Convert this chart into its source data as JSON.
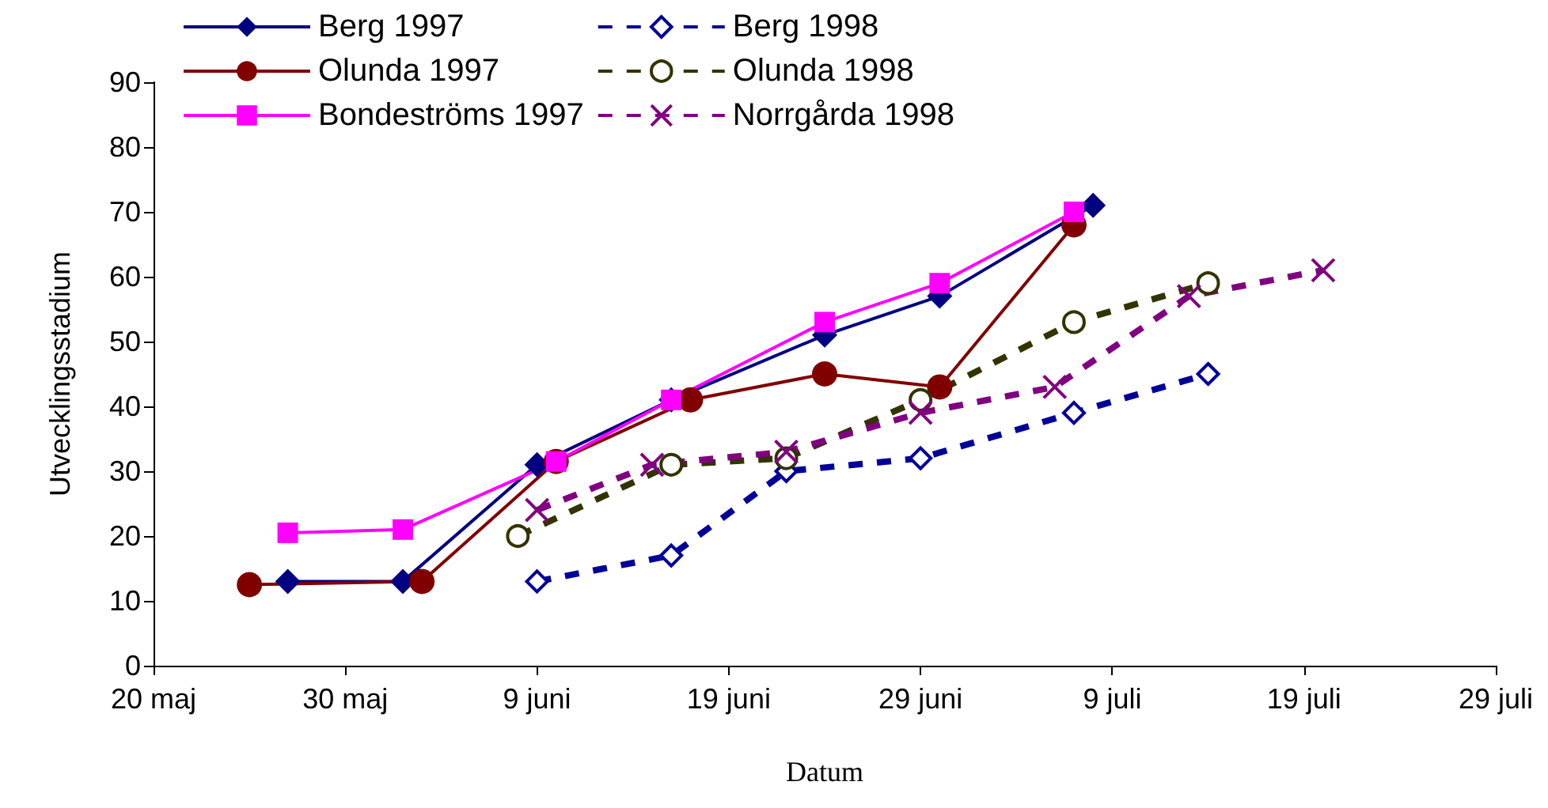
{
  "chart_data": {
    "type": "line",
    "xlabel": "Datum",
    "ylabel": "Utvecklingsstadium",
    "xlim": [
      "--05-20",
      "--07-29"
    ],
    "xticks": [
      {
        "value": "--05-20",
        "label": "20 maj"
      },
      {
        "value": "--05-30",
        "label": "30 maj"
      },
      {
        "value": "--06-09",
        "label": "9 juni"
      },
      {
        "value": "--06-19",
        "label": "19 juni"
      },
      {
        "value": "--06-29",
        "label": "29 juni"
      },
      {
        "value": "--07-09",
        "label": "9 juli"
      },
      {
        "value": "--07-19",
        "label": "19 juli"
      },
      {
        "value": "--07-29",
        "label": "29 juli"
      }
    ],
    "ylim": [
      0,
      90
    ],
    "yticks": [
      0,
      10,
      20,
      30,
      40,
      50,
      60,
      70,
      80,
      90
    ],
    "grid": false,
    "legend": "top",
    "series": [
      {
        "name": "Berg 1997",
        "color": "#000080",
        "marker": "diamond",
        "line_style": "solid",
        "x": [
          "--05-27",
          "--06-02",
          "--06-09",
          "--06-16",
          "--06-24",
          "--06-30",
          "--07-08"
        ],
        "values": [
          13,
          13,
          31,
          41,
          51,
          57,
          71
        ]
      },
      {
        "name": "Olunda 1997",
        "color": "#800000",
        "marker": "circle",
        "line_style": "solid",
        "x": [
          "--05-25",
          "--06-03",
          "--06-10",
          "--06-17",
          "--06-24",
          "--06-30",
          "--07-07"
        ],
        "values": [
          12.5,
          13,
          31.5,
          41,
          45,
          43,
          68
        ]
      },
      {
        "name": "Bondeströms 1997",
        "color": "#ff00ff",
        "marker": "square",
        "line_style": "solid",
        "x": [
          "--05-27",
          "--06-02",
          "--06-10",
          "--06-16",
          "--06-24",
          "--06-30",
          "--07-07"
        ],
        "values": [
          20.5,
          21,
          31.5,
          41,
          53,
          59,
          70
        ]
      },
      {
        "name": "Berg 1998",
        "color": "#000099",
        "marker": "diamond",
        "line_style": "dashed",
        "x": [
          "--06-09",
          "--06-16",
          "--06-22",
          "--06-29",
          "--07-07",
          "--07-14"
        ],
        "values": [
          13,
          17,
          30,
          32,
          39,
          45
        ]
      },
      {
        "name": "Olunda 1998",
        "color": "#333300",
        "marker": "circle",
        "line_style": "dashed",
        "x": [
          "--06-08",
          "--06-16",
          "--06-22",
          "--06-29",
          "--07-07",
          "--07-14"
        ],
        "values": [
          20,
          31,
          32,
          41,
          53,
          59
        ]
      },
      {
        "name": "Norrgårda 1998",
        "color": "#800080",
        "marker": "cross",
        "line_style": "dashed",
        "x": [
          "--06-09",
          "--06-15",
          "--06-22",
          "--06-29",
          "--07-06",
          "--07-13",
          "--07-20"
        ],
        "values": [
          24,
          31,
          33,
          39,
          43,
          57,
          61
        ]
      }
    ]
  }
}
